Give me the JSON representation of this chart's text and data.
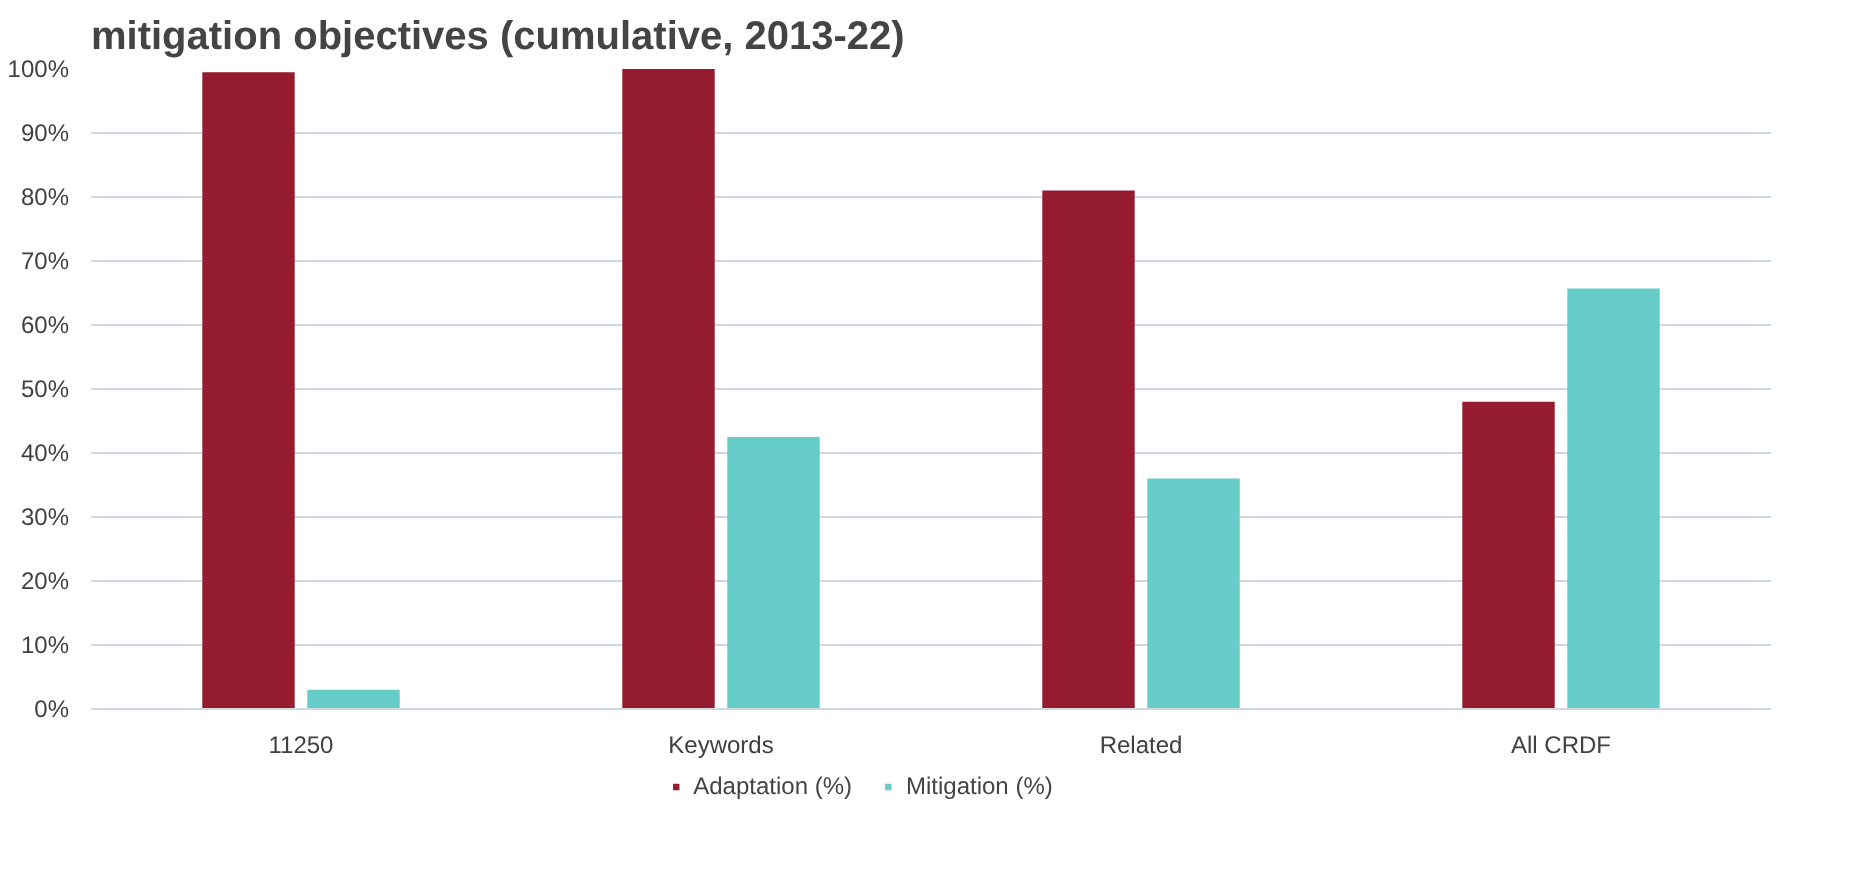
{
  "chart_data": {
    "type": "bar",
    "title": "mitigation objectives (cumulative, 2013-22)",
    "categories": [
      "11250",
      "Keywords",
      "Related",
      "All CRDF"
    ],
    "series": [
      {
        "name": "Adaptation (%)",
        "color": "#951b2e",
        "values": [
          99.5,
          100,
          81,
          48
        ]
      },
      {
        "name": "Mitigation (%)",
        "color": "#66cdc9",
        "values": [
          3,
          42.5,
          36,
          65.7
        ]
      }
    ],
    "ylim": [
      0,
      100
    ],
    "yticks": [
      {
        "value": 0,
        "label": "0%"
      },
      {
        "value": 10,
        "label": "10%"
      },
      {
        "value": 20,
        "label": "20%"
      },
      {
        "value": 30,
        "label": "30%"
      },
      {
        "value": 40,
        "label": "40%"
      },
      {
        "value": 50,
        "label": "50%"
      },
      {
        "value": 60,
        "label": "60%"
      },
      {
        "value": 70,
        "label": "70%"
      },
      {
        "value": 80,
        "label": "80%"
      },
      {
        "value": 90,
        "label": "90%"
      },
      {
        "value": 100,
        "label": "100%"
      }
    ],
    "grid": "y",
    "legend": "bottom"
  }
}
